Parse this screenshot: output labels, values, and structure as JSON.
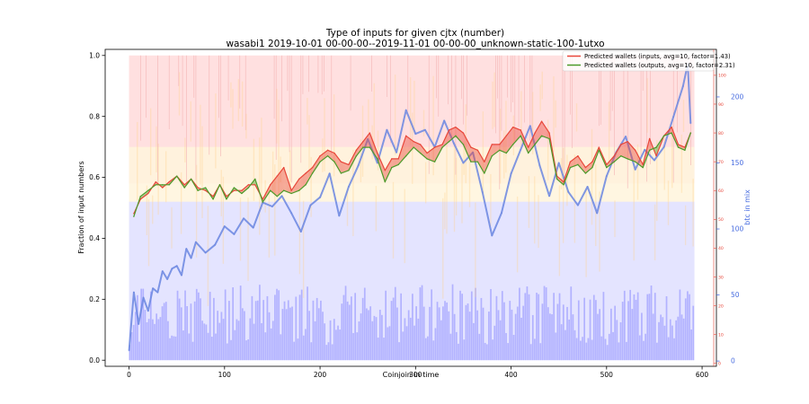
{
  "chart_data": {
    "type": "line",
    "title": "Type of inputs for given cjtx (number)",
    "subtitle": "wasabi1 2019-10-01 00-00-00--2019-11-01 00-00-00_unknown-static-100-1utxo",
    "xlabel": "Coinjoin in time",
    "ylabel": "Fraction of input numbers",
    "y2label": "btc in mix",
    "xlim": [
      -25,
      615
    ],
    "ylim": [
      -0.02,
      1.02
    ],
    "y3lim": [
      -1,
      109
    ],
    "y2lim": [
      -4,
      236
    ],
    "xticks": [
      0,
      100,
      200,
      300,
      400,
      500,
      600
    ],
    "yticks": [
      0.0,
      0.2,
      0.4,
      0.6,
      0.8,
      1.0
    ],
    "y2ticks": [
      0,
      50,
      100,
      150,
      200
    ],
    "y3ticks": [
      0,
      10,
      20,
      30,
      40,
      50,
      60,
      70,
      80,
      90,
      100
    ],
    "n_cjtx": 592,
    "legend_position": "top-right",
    "series": [
      {
        "name": "Predicted wallets (inputs, avg=10, factor=1.43)",
        "color": "#e8473a",
        "axis": "right-red",
        "x": [
          5,
          12,
          20,
          28,
          35,
          42,
          50,
          58,
          65,
          72,
          80,
          88,
          95,
          102,
          110,
          118,
          125,
          132,
          140,
          148,
          155,
          162,
          170,
          178,
          185,
          192,
          200,
          208,
          215,
          222,
          230,
          238,
          245,
          252,
          260,
          268,
          275,
          282,
          290,
          298,
          305,
          312,
          320,
          328,
          335,
          342,
          350,
          358,
          365,
          372,
          380,
          388,
          395,
          402,
          410,
          418,
          425,
          432,
          440,
          448,
          455,
          462,
          470,
          478,
          485,
          492,
          500,
          508,
          515,
          522,
          530,
          538,
          545,
          552,
          560,
          568,
          575,
          582,
          588
        ],
        "values": [
          52,
          57,
          59,
          63,
          61,
          63,
          65,
          62,
          64,
          61,
          60,
          58,
          62,
          58,
          60,
          60,
          62,
          62,
          57,
          62,
          65,
          68,
          60,
          64,
          66,
          68,
          72,
          74,
          73,
          70,
          69,
          74,
          77,
          80,
          73,
          67,
          71,
          71,
          79,
          77,
          76,
          73,
          75,
          76,
          81,
          82,
          80,
          75,
          74,
          70,
          76,
          76,
          79,
          82,
          81,
          75,
          80,
          84,
          80,
          65,
          63,
          70,
          72,
          68,
          70,
          75,
          69,
          72,
          76,
          77,
          74,
          69,
          78,
          72,
          79,
          82,
          76,
          75,
          80
        ]
      },
      {
        "name": "Predicted wallets (outputs, avg=10, factor=2.31)",
        "color": "#4c9a2a",
        "axis": "right-red",
        "x": [
          5,
          12,
          20,
          28,
          35,
          42,
          50,
          58,
          65,
          72,
          80,
          88,
          95,
          102,
          110,
          118,
          125,
          132,
          140,
          148,
          155,
          162,
          170,
          178,
          185,
          192,
          200,
          208,
          215,
          222,
          230,
          238,
          245,
          252,
          260,
          268,
          275,
          282,
          290,
          298,
          305,
          312,
          320,
          328,
          335,
          342,
          350,
          358,
          365,
          372,
          380,
          388,
          395,
          402,
          410,
          418,
          425,
          432,
          440,
          448,
          455,
          462,
          470,
          478,
          485,
          492,
          500,
          508,
          515,
          522,
          530,
          538,
          545,
          552,
          560,
          568,
          575,
          582,
          588
        ],
        "values": [
          51,
          58,
          60,
          62,
          62,
          62,
          65,
          61,
          64,
          60,
          61,
          57,
          62,
          57,
          61,
          59,
          61,
          64,
          56,
          60,
          58,
          60,
          59,
          60,
          62,
          66,
          70,
          72,
          70,
          66,
          67,
          72,
          75,
          75,
          71,
          63,
          68,
          69,
          72,
          75,
          73,
          71,
          70,
          75,
          77,
          79,
          76,
          70,
          70,
          66,
          72,
          74,
          73,
          76,
          79,
          73,
          76,
          79,
          78,
          64,
          62,
          68,
          69,
          66,
          68,
          74,
          68,
          70,
          72,
          71,
          70,
          68,
          74,
          75,
          79,
          80,
          75,
          74,
          80
        ]
      },
      {
        "name": "",
        "color": "#6a86e0",
        "axis": "right-blue",
        "x": [
          0,
          5,
          10,
          15,
          20,
          25,
          30,
          35,
          40,
          45,
          50,
          55,
          60,
          65,
          70,
          80,
          90,
          100,
          110,
          120,
          130,
          140,
          150,
          160,
          170,
          180,
          190,
          200,
          210,
          220,
          230,
          240,
          250,
          260,
          270,
          280,
          290,
          300,
          310,
          320,
          330,
          340,
          350,
          360,
          370,
          380,
          390,
          400,
          410,
          420,
          430,
          440,
          450,
          460,
          470,
          480,
          490,
          500,
          510,
          520,
          530,
          540,
          550,
          560,
          570,
          580,
          585,
          588
        ],
        "values": [
          8,
          52,
          28,
          48,
          38,
          55,
          52,
          68,
          62,
          70,
          72,
          65,
          85,
          78,
          90,
          82,
          88,
          102,
          96,
          108,
          101,
          120,
          117,
          125,
          112,
          98,
          118,
          124,
          142,
          110,
          132,
          148,
          168,
          150,
          175,
          158,
          190,
          172,
          175,
          162,
          182,
          165,
          150,
          158,
          128,
          95,
          112,
          142,
          160,
          178,
          148,
          125,
          150,
          128,
          118,
          132,
          112,
          140,
          158,
          170,
          145,
          160,
          152,
          162,
          185,
          208,
          225,
          180
        ]
      }
    ]
  }
}
